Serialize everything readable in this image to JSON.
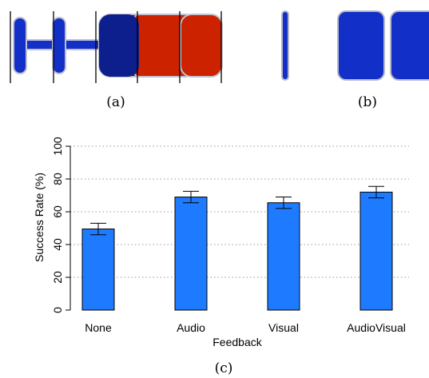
{
  "captions": {
    "a": "(a)",
    "b": "(b)",
    "c": "(c)"
  },
  "colors": {
    "bar": "#1e7bff",
    "bar_stroke": "#000000",
    "shape_blue": "#1230c8",
    "shape_dark_blue": "#0d1f8c",
    "shape_red": "#cc2200",
    "grid": "#999999"
  },
  "chart_data": {
    "type": "bar",
    "categories": [
      "None",
      "Audio",
      "Visual",
      "AudioVisual"
    ],
    "values": [
      49.5,
      69,
      65.5,
      72
    ],
    "errors": [
      3.5,
      3.5,
      3.5,
      3.5
    ],
    "title": "",
    "xlabel": "Feedback",
    "ylabel": "Success Rate (%)",
    "ylim": [
      0,
      100
    ],
    "yticks": [
      0,
      20,
      40,
      60,
      80,
      100
    ],
    "grid": true
  }
}
